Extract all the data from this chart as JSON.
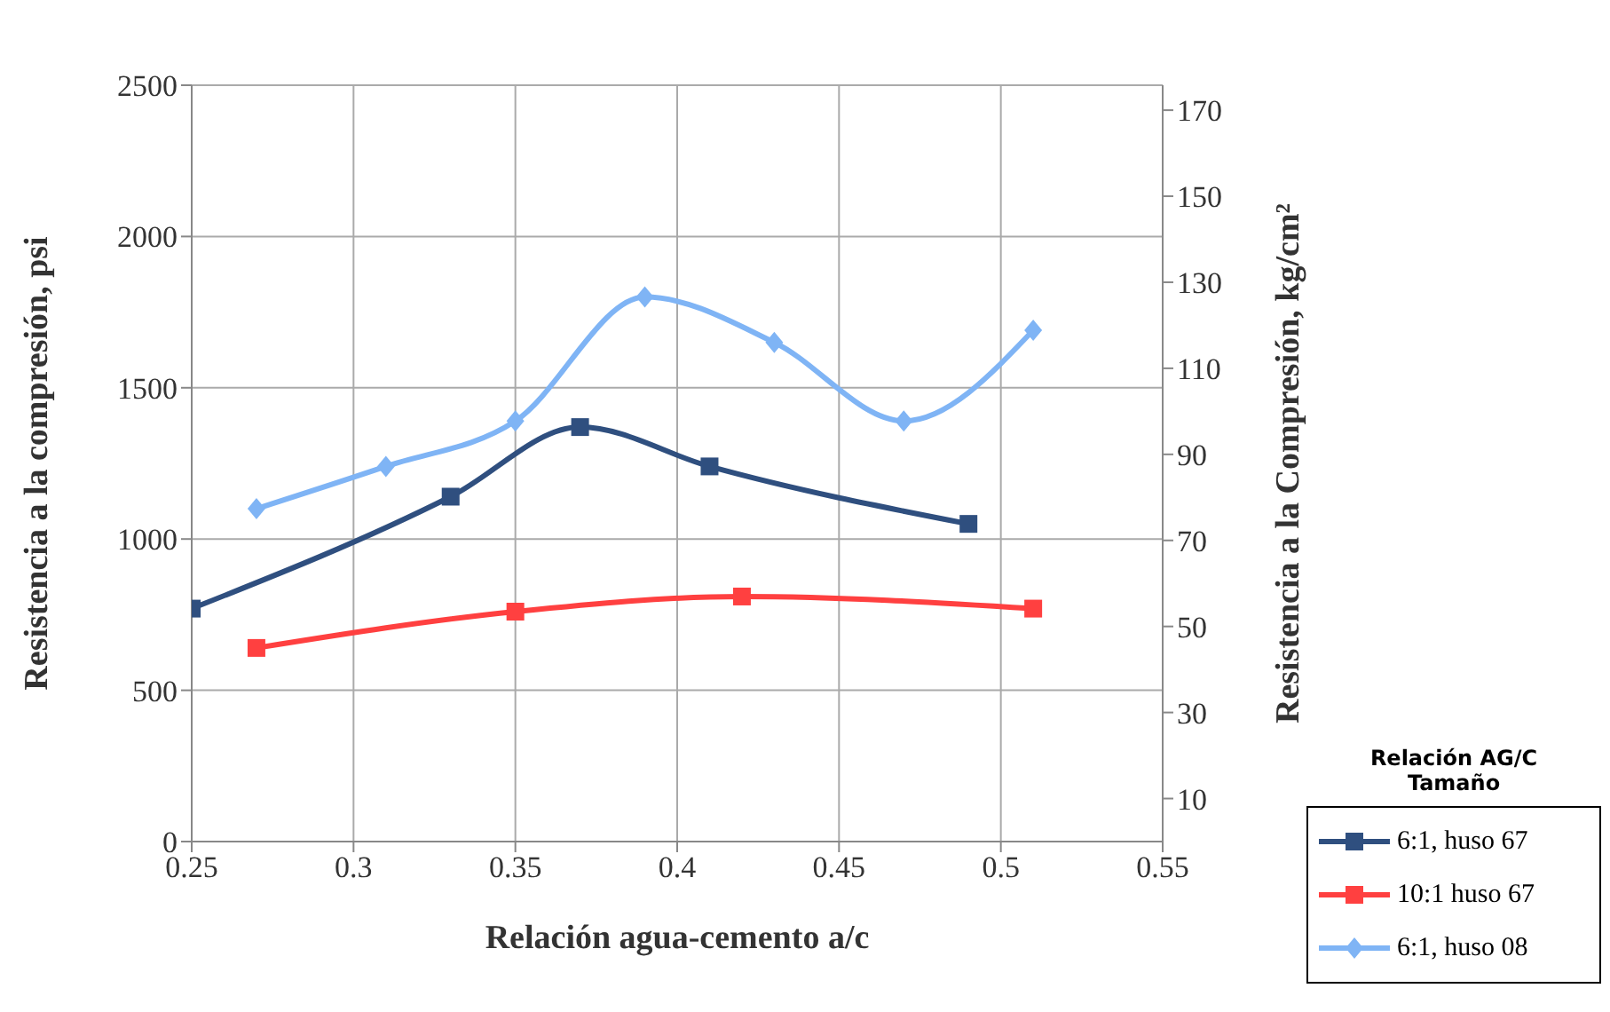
{
  "chart_data": {
    "type": "line",
    "xlabel": "Relación agua-cemento a/c",
    "ylabel": "Resistencia a la compresión, psi",
    "y2label": "Resistencia a la Compresión, kg/cm²",
    "legend_title": "Relación AG/C\nTamaño",
    "xlim": [
      0.25,
      0.55
    ],
    "xticks": [
      0.25,
      0.3,
      0.35,
      0.4,
      0.45,
      0.5,
      0.55
    ],
    "ylim": [
      0,
      2500
    ],
    "yticks": [
      0,
      500,
      1000,
      1500,
      2000,
      2500
    ],
    "y2lim": [
      0,
      175.8
    ],
    "y2ticks": [
      10,
      30,
      50,
      70,
      90,
      110,
      130,
      150,
      170
    ],
    "grid": true,
    "legend": "bottom right",
    "series": [
      {
        "name": "6:1, huso 67",
        "color": "#2f4f7f",
        "marker": "square",
        "x": [
          0.25,
          0.33,
          0.37,
          0.41,
          0.49
        ],
        "values": [
          770,
          1140,
          1370,
          1240,
          1050
        ]
      },
      {
        "name": "10:1 huso 67",
        "color": "#ff4040",
        "marker": "square",
        "x": [
          0.27,
          0.35,
          0.42,
          0.51
        ],
        "values": [
          640,
          760,
          810,
          770
        ]
      },
      {
        "name": "6:1, huso 08",
        "color": "#7fb4f5",
        "marker": "diamond",
        "x": [
          0.27,
          0.31,
          0.35,
          0.39,
          0.43,
          0.47,
          0.51
        ],
        "values": [
          1100,
          1240,
          1390,
          1800,
          1650,
          1390,
          1690
        ]
      }
    ]
  }
}
